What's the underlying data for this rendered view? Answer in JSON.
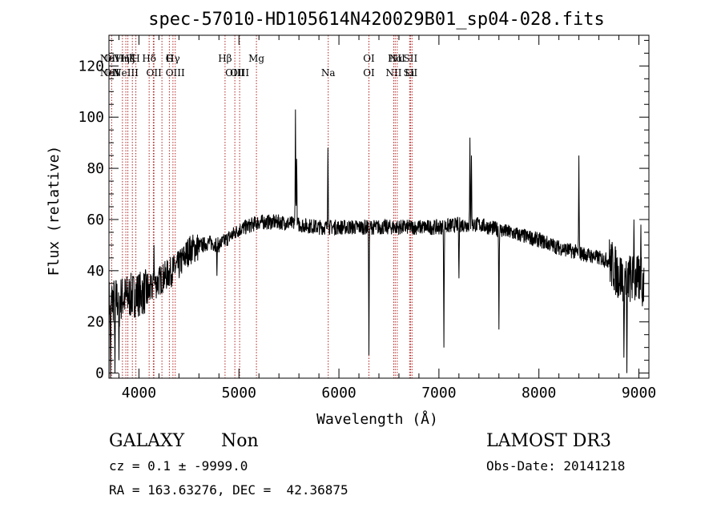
{
  "chart_data": {
    "type": "line",
    "title": "spec-57010-HD105614N420029B01_sp04-028.fits",
    "xlabel": "Wavelength (Å)",
    "ylabel": "Flux (relative)",
    "xlim": [
      3700,
      9100
    ],
    "ylim": [
      -2,
      132
    ],
    "x_ticks": [
      4000,
      5000,
      6000,
      7000,
      8000,
      9000
    ],
    "y_ticks": [
      0,
      20,
      40,
      60,
      80,
      100,
      120
    ],
    "grid": false,
    "line_color": "#000000",
    "marker_color": "#b22222",
    "continuum_knots": [
      [
        3700,
        28
      ],
      [
        3900,
        30
      ],
      [
        4100,
        32
      ],
      [
        4200,
        36
      ],
      [
        4400,
        42
      ],
      [
        4500,
        48
      ],
      [
        4700,
        51
      ],
      [
        4800,
        50
      ],
      [
        5000,
        56
      ],
      [
        5200,
        59
      ],
      [
        5400,
        59
      ],
      [
        5600,
        58
      ],
      [
        5800,
        57
      ],
      [
        6000,
        57
      ],
      [
        6200,
        57
      ],
      [
        6500,
        57
      ],
      [
        6800,
        57
      ],
      [
        7000,
        57
      ],
      [
        7200,
        58
      ],
      [
        7400,
        58
      ],
      [
        7600,
        56
      ],
      [
        7800,
        54
      ],
      [
        8000,
        52
      ],
      [
        8200,
        49
      ],
      [
        8400,
        47
      ],
      [
        8600,
        45
      ],
      [
        8700,
        44
      ],
      [
        8800,
        38
      ],
      [
        9000,
        36
      ],
      [
        9050,
        35
      ]
    ],
    "spikes": [
      [
        3715,
        -2
      ],
      [
        3760,
        0
      ],
      [
        3800,
        5
      ],
      [
        4150,
        50
      ],
      [
        4780,
        38
      ],
      [
        5565,
        103
      ],
      [
        5577,
        86
      ],
      [
        5890,
        88
      ],
      [
        6300,
        7
      ],
      [
        7050,
        10
      ],
      [
        7200,
        37
      ],
      [
        7310,
        92
      ],
      [
        7325,
        85
      ],
      [
        7600,
        17
      ],
      [
        8400,
        85
      ],
      [
        8850,
        6
      ],
      [
        8880,
        0
      ],
      [
        8950,
        60
      ],
      [
        9020,
        58
      ]
    ],
    "line_markers": [
      {
        "x": 3426,
        "top": "NeV",
        "bottom": "NeV"
      },
      {
        "x": 3727,
        "top": "OII",
        "bottom": "OII"
      },
      {
        "x": 3835,
        "top": "Hη",
        "bottom": ""
      },
      {
        "x": 3869,
        "top": "",
        "bottom": "NeIII"
      },
      {
        "x": 3889,
        "top": "Hζ",
        "bottom": ""
      },
      {
        "x": 3934,
        "top": "K",
        "bottom": ""
      },
      {
        "x": 3969,
        "top": "H",
        "bottom": ""
      },
      {
        "x": 4102,
        "top": "Hδ",
        "bottom": ""
      },
      {
        "x": 4144,
        "top": "",
        "bottom": ""
      },
      {
        "x": 4150,
        "top": "",
        "bottom": "OII"
      },
      {
        "x": 4230,
        "top": "",
        "bottom": ""
      },
      {
        "x": 4304,
        "top": "G",
        "bottom": ""
      },
      {
        "x": 4340,
        "top": "Hγ",
        "bottom": ""
      },
      {
        "x": 4363,
        "top": "",
        "bottom": "OIII"
      },
      {
        "x": 4861,
        "top": "Hβ",
        "bottom": ""
      },
      {
        "x": 4959,
        "top": "",
        "bottom": "OIII"
      },
      {
        "x": 5007,
        "top": "",
        "bottom": "OIII"
      },
      {
        "x": 5175,
        "top": "Mg",
        "bottom": ""
      },
      {
        "x": 5893,
        "top": "",
        "bottom": "Na"
      },
      {
        "x": 6300,
        "top": "OI",
        "bottom": "OI"
      },
      {
        "x": 6548,
        "top": "",
        "bottom": "NII"
      },
      {
        "x": 6563,
        "top": "Hα",
        "bottom": ""
      },
      {
        "x": 6583,
        "top": "NII",
        "bottom": ""
      },
      {
        "x": 6707,
        "top": "",
        "bottom": "Li"
      },
      {
        "x": 6716,
        "top": "SII",
        "bottom": "SII"
      },
      {
        "x": 6731,
        "top": "",
        "bottom": ""
      }
    ]
  },
  "info": {
    "class_label": "GALAXY",
    "subclass_label": "Non",
    "survey": "LAMOST DR3",
    "cz": "cz = 0.1 ± -9999.0",
    "obs_date": "Obs-Date: 20141218",
    "coords": "RA = 163.63276, DEC =  42.36875"
  }
}
